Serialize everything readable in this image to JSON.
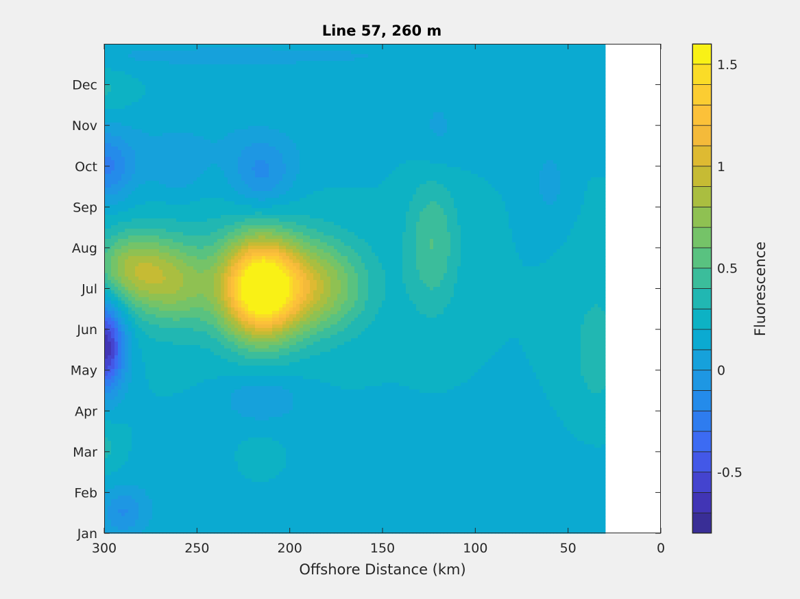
{
  "chart_data": {
    "type": "heatmap",
    "subtype": "filled-contour",
    "title": "Line 57, 260 m",
    "xlabel": "Offshore Distance (km)",
    "ylabel": "",
    "x_direction": "reversed",
    "xlim": [
      0,
      300
    ],
    "xticks": [
      300,
      250,
      200,
      150,
      100,
      50,
      0
    ],
    "xtick_labels": [
      "300",
      "250",
      "200",
      "150",
      "100",
      "50",
      "0"
    ],
    "data_x_extent": [
      30,
      300
    ],
    "ylim": [
      0,
      12
    ],
    "yticks": [
      0,
      1,
      2,
      3,
      4,
      5,
      6,
      7,
      8,
      9,
      10,
      11
    ],
    "ytick_labels": [
      "Jan",
      "Feb",
      "Mar",
      "Apr",
      "May",
      "Jun",
      "Jul",
      "Aug",
      "Sep",
      "Oct",
      "Nov",
      "Dec"
    ],
    "colorbar": {
      "label": "Fluorescence",
      "clim": [
        -0.8,
        1.6
      ],
      "step": 0.1,
      "ticks": [
        -0.5,
        0,
        0.5,
        1,
        1.5
      ],
      "tick_labels": [
        "-0.5",
        "0",
        "0.5",
        "1",
        "1.5"
      ],
      "colormap": "parula"
    },
    "background": 0.2,
    "features": [
      {
        "x": 216,
        "y": 6.0,
        "peak": 1.35,
        "sx": 14,
        "sy": 0.85
      },
      {
        "x": 188,
        "y": 6.05,
        "peak": 0.6,
        "sx": 20,
        "sy": 0.8
      },
      {
        "x": 285,
        "y": 6.5,
        "peak": 0.5,
        "sx": 14,
        "sy": 0.6
      },
      {
        "x": 262,
        "y": 6.1,
        "peak": 0.35,
        "sx": 14,
        "sy": 0.7
      },
      {
        "x": 245,
        "y": 6.2,
        "peak": 0.2,
        "sx": 40,
        "sy": 1.0
      },
      {
        "x": 123,
        "y": 7.1,
        "peak": 0.3,
        "sx": 10,
        "sy": 1.2
      },
      {
        "x": 35,
        "y": 4.5,
        "peak": 0.15,
        "sx": 10,
        "sy": 1.2
      },
      {
        "x": 300,
        "y": 4.6,
        "peak": -0.9,
        "sx": 8,
        "sy": 0.8
      },
      {
        "x": 300,
        "y": 8.95,
        "peak": -0.4,
        "sx": 12,
        "sy": 0.6
      },
      {
        "x": 215,
        "y": 8.8,
        "peak": -0.3,
        "sx": 12,
        "sy": 0.6
      },
      {
        "x": 260,
        "y": 8.9,
        "peak": -0.15,
        "sx": 10,
        "sy": 0.5
      },
      {
        "x": 215,
        "y": 3.3,
        "peak": -0.2,
        "sx": 15,
        "sy": 0.4
      },
      {
        "x": 60,
        "y": 8.6,
        "peak": -0.15,
        "sx": 6,
        "sy": 0.6
      },
      {
        "x": 120,
        "y": 9.9,
        "peak": -0.12,
        "sx": 10,
        "sy": 0.8
      },
      {
        "x": 170,
        "y": 0.8,
        "peak": -0.1,
        "sx": 120,
        "sy": 1.0
      },
      {
        "x": 230,
        "y": 11.7,
        "peak": -0.12,
        "sx": 120,
        "sy": 0.3
      },
      {
        "x": 250,
        "y": 9.6,
        "peak": -0.08,
        "sx": 60,
        "sy": 0.6
      },
      {
        "x": 290,
        "y": 0.5,
        "peak": -0.25,
        "sx": 8,
        "sy": 0.4
      },
      {
        "x": 35,
        "y": 10.5,
        "peak": -0.1,
        "sx": 8,
        "sy": 0.5
      },
      {
        "x": 300,
        "y": 2.1,
        "peak": 0.15,
        "sx": 8,
        "sy": 0.5
      },
      {
        "x": 300,
        "y": 10.9,
        "peak": 0.12,
        "sx": 10,
        "sy": 0.4
      },
      {
        "x": 215,
        "y": 1.7,
        "peak": 0.15,
        "sx": 10,
        "sy": 0.4
      }
    ]
  }
}
